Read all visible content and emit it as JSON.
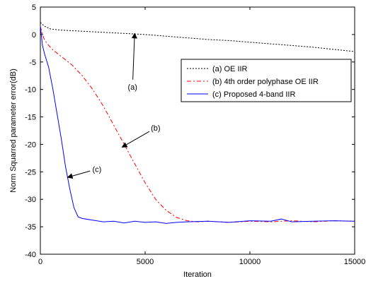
{
  "chart_data": {
    "type": "line",
    "title": "",
    "xlabel": "Iteration",
    "ylabel": "Norm Squarred parameter error(dB)",
    "xlim": [
      0,
      15000
    ],
    "ylim": [
      -40,
      5
    ],
    "xticks": [
      0,
      5000,
      10000,
      15000
    ],
    "yticks": [
      5,
      0,
      -5,
      -10,
      -15,
      -20,
      -25,
      -30,
      -35,
      -40
    ],
    "grid": false,
    "legend_position": "upper-right",
    "series": [
      {
        "name": "(a) OE IIR",
        "color": "#000000",
        "dash": "dotted",
        "x": [
          0,
          200,
          500,
          1000,
          2000,
          3000,
          4000,
          5000,
          6000,
          7000,
          8000,
          9000,
          10000,
          11000,
          12000,
          13000,
          14000,
          15000
        ],
        "y": [
          2.2,
          1.5,
          1.0,
          0.8,
          0.6,
          0.4,
          0.2,
          0.0,
          -0.3,
          -0.6,
          -0.9,
          -1.1,
          -1.4,
          -1.7,
          -2.0,
          -2.3,
          -2.7,
          -3.1
        ]
      },
      {
        "name": "(b) 4th order polyphase OE IIR",
        "color": "#ff0000",
        "dash": "dashdot",
        "x": [
          0,
          100,
          200,
          400,
          600,
          800,
          1000,
          1500,
          2000,
          2500,
          3000,
          3500,
          4000,
          4500,
          5000,
          5500,
          6000,
          6500,
          7000,
          7500,
          8000,
          9000,
          10000,
          11000,
          12000,
          13000,
          14000,
          15000
        ],
        "y": [
          1.5,
          0.0,
          -1.0,
          -2.0,
          -2.8,
          -3.4,
          -4.0,
          -5.5,
          -7.5,
          -10.0,
          -13.0,
          -16.5,
          -20.0,
          -23.5,
          -27.0,
          -30.0,
          -32.0,
          -33.3,
          -33.9,
          -34.1,
          -34.0,
          -34.2,
          -34.0,
          -34.1,
          -33.9,
          -34.1,
          -33.9,
          -34.0
        ]
      },
      {
        "name": "(c) Proposed 4-band IIR",
        "color": "#0000ff",
        "dash": "solid",
        "x": [
          0,
          100,
          200,
          400,
          600,
          800,
          1000,
          1200,
          1400,
          1600,
          1800,
          2000,
          2500,
          3000,
          3500,
          4000,
          4500,
          5000,
          5500,
          6000,
          6500,
          7000,
          8000,
          9000,
          10000,
          11000,
          11500,
          12000,
          13000,
          14000,
          15000
        ],
        "y": [
          1.5,
          -2.0,
          -3.5,
          -6.0,
          -10.0,
          -14.5,
          -19.0,
          -24.0,
          -28.0,
          -31.5,
          -33.2,
          -33.5,
          -33.8,
          -34.1,
          -34.0,
          -34.3,
          -34.0,
          -34.2,
          -34.1,
          -34.4,
          -34.2,
          -34.1,
          -34.0,
          -34.2,
          -33.9,
          -34.0,
          -33.6,
          -34.1,
          -34.0,
          -33.9,
          -34.0
        ]
      }
    ],
    "annotations": [
      {
        "text": "(a)",
        "arrow_to": [
          4500,
          0.2
        ],
        "text_at": [
          4400,
          -9.5
        ]
      },
      {
        "text": "(b)",
        "arrow_to": [
          3900,
          -20.5
        ],
        "text_at": [
          5500,
          -17.0
        ]
      },
      {
        "text": "(c)",
        "arrow_to": [
          1300,
          -26.0
        ],
        "text_at": [
          2700,
          -24.5
        ]
      }
    ]
  }
}
